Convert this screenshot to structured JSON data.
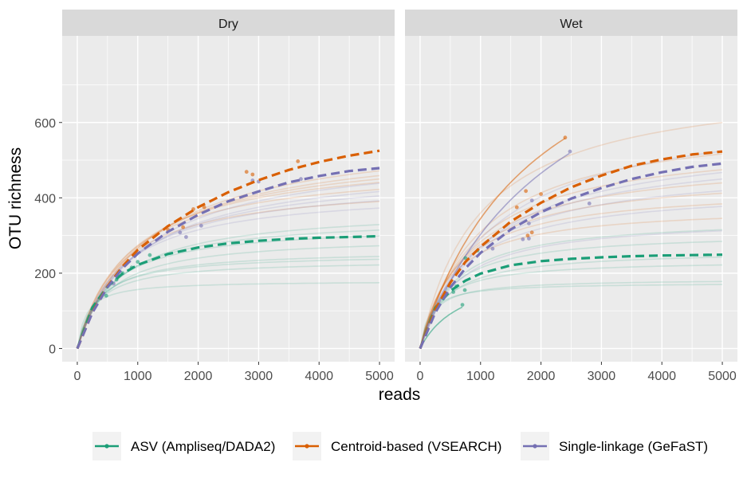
{
  "chart_data": {
    "type": "line",
    "xlabel": "reads",
    "ylabel": "OTU richness",
    "xlim": [
      -250,
      5250
    ],
    "ylim": [
      -35,
      830
    ],
    "x_ticks": [
      0,
      1000,
      2000,
      3000,
      4000,
      5000
    ],
    "y_ticks": [
      0,
      200,
      400,
      600
    ],
    "grid": true,
    "legend_position": "bottom",
    "colors": {
      "asv": "#1b9e77",
      "centroid": "#d95f02",
      "single": "#7570b3",
      "panel_bg": "#ebebeb",
      "strip_bg": "#d9d9d9"
    },
    "series": [
      {
        "key": "asv",
        "name": "ASV (Ampliseq/DADA2)"
      },
      {
        "key": "centroid",
        "name": "Centroid-based (VSEARCH)"
      },
      {
        "key": "single",
        "name": "Single-linkage (GeFaST)"
      }
    ],
    "panels": [
      {
        "title": "Dry",
        "mean_curves": [
          {
            "series": "asv",
            "x": [
              0,
              250,
              500,
              750,
              1000,
              1500,
              2000,
              2500,
              3000,
              3500,
              4000,
              4500,
              5000
            ],
            "y": [
              0,
              109,
              165,
              199,
              222,
              251,
              268,
              279,
              286,
              291,
              294,
              296,
              298
            ]
          },
          {
            "series": "centroid",
            "x": [
              0,
              250,
              500,
              750,
              1000,
              1500,
              2000,
              2500,
              3000,
              3500,
              4000,
              4500,
              5000
            ],
            "y": [
              0,
              97,
              165,
              218,
              262,
              325,
              375,
              415,
              447,
              474,
              495,
              512,
              525
            ]
          },
          {
            "series": "single",
            "x": [
              0,
              250,
              500,
              750,
              1000,
              1500,
              2000,
              2500,
              3000,
              3500,
              4000,
              4500,
              5000
            ],
            "y": [
              0,
              95,
              163,
              213,
              252,
              310,
              355,
              391,
              417,
              441,
              458,
              471,
              479
            ]
          }
        ],
        "sample_curves": [
          {
            "series": "asv",
            "asymptote": 180,
            "halfsat": 150,
            "end_x": 5000
          },
          {
            "series": "asv",
            "asymptote": 235,
            "halfsat": 300,
            "end_x": 5000
          },
          {
            "series": "asv",
            "asymptote": 252,
            "halfsat": 320,
            "end_x": 5000
          },
          {
            "series": "asv",
            "asymptote": 262,
            "halfsat": 360,
            "end_x": 5000
          },
          {
            "series": "asv",
            "asymptote": 300,
            "halfsat": 500,
            "end_x": 5000
          },
          {
            "series": "asv",
            "asymptote": 330,
            "halfsat": 520,
            "end_x": 5000
          },
          {
            "series": "asv",
            "asymptote": 352,
            "halfsat": 600,
            "end_x": 5000
          },
          {
            "series": "asv",
            "asymptote": 375,
            "halfsat": 700,
            "end_x": 5000
          },
          {
            "series": "centroid",
            "asymptote": 445,
            "halfsat": 700,
            "end_x": 5000
          },
          {
            "series": "centroid",
            "asymptote": 490,
            "halfsat": 800,
            "end_x": 5000
          },
          {
            "series": "centroid",
            "asymptote": 520,
            "halfsat": 900,
            "end_x": 5000
          },
          {
            "series": "centroid",
            "asymptote": 540,
            "halfsat": 1000,
            "end_x": 5000
          },
          {
            "series": "centroid",
            "asymptote": 560,
            "halfsat": 1100,
            "end_x": 5000
          },
          {
            "series": "centroid",
            "asymptote": 585,
            "halfsat": 1200,
            "end_x": 5000
          },
          {
            "series": "single",
            "asymptote": 425,
            "halfsat": 700,
            "end_x": 5000
          },
          {
            "series": "single",
            "asymptote": 455,
            "halfsat": 800,
            "end_x": 5000
          },
          {
            "series": "single",
            "asymptote": 478,
            "halfsat": 900,
            "end_x": 5000
          },
          {
            "series": "single",
            "asymptote": 500,
            "halfsat": 1000,
            "end_x": 5000
          },
          {
            "series": "single",
            "asymptote": 535,
            "halfsat": 1100,
            "end_x": 5000
          }
        ],
        "end_points": [
          {
            "series": "asv",
            "x": 480,
            "y": 140
          },
          {
            "series": "asv",
            "x": 650,
            "y": 183
          },
          {
            "series": "asv",
            "x": 750,
            "y": 200
          },
          {
            "series": "asv",
            "x": 900,
            "y": 215
          },
          {
            "series": "asv",
            "x": 1000,
            "y": 230
          },
          {
            "series": "asv",
            "x": 1200,
            "y": 248
          },
          {
            "series": "centroid",
            "x": 1500,
            "y": 315
          },
          {
            "series": "centroid",
            "x": 1750,
            "y": 322
          },
          {
            "series": "centroid",
            "x": 1920,
            "y": 370
          },
          {
            "series": "centroid",
            "x": 2100,
            "y": 375
          },
          {
            "series": "centroid",
            "x": 2800,
            "y": 469
          },
          {
            "series": "centroid",
            "x": 2900,
            "y": 462
          },
          {
            "series": "centroid",
            "x": 3650,
            "y": 497
          },
          {
            "series": "single",
            "x": 600,
            "y": 172
          },
          {
            "series": "single",
            "x": 1700,
            "y": 308
          },
          {
            "series": "single",
            "x": 1800,
            "y": 296
          },
          {
            "series": "single",
            "x": 2050,
            "y": 326
          },
          {
            "series": "single",
            "x": 2900,
            "y": 446
          },
          {
            "series": "single",
            "x": 3000,
            "y": 443
          },
          {
            "series": "single",
            "x": 3700,
            "y": 450
          }
        ]
      },
      {
        "title": "Wet",
        "mean_curves": [
          {
            "series": "asv",
            "x": [
              0,
              250,
              500,
              750,
              1000,
              1500,
              2000,
              2500,
              3000,
              3500,
              4000,
              4500,
              5000
            ],
            "y": [
              0,
              108,
              153,
              180,
              199,
              221,
              232,
              238,
              242,
              245,
              247,
              248,
              249
            ]
          },
          {
            "series": "centroid",
            "x": [
              0,
              250,
              500,
              750,
              1000,
              1500,
              2000,
              2500,
              3000,
              3500,
              4000,
              4500,
              5000
            ],
            "y": [
              0,
              103,
              175,
              230,
              270,
              337,
              387,
              428,
              459,
              485,
              502,
              515,
              523
            ]
          },
          {
            "series": "single",
            "x": [
              0,
              250,
              500,
              750,
              1000,
              1500,
              2000,
              2500,
              3000,
              3500,
              4000,
              4500,
              5000
            ],
            "y": [
              0,
              95,
              162,
              213,
              254,
              316,
              362,
              398,
              426,
              450,
              468,
              482,
              491
            ]
          }
        ],
        "sample_curves": [
          {
            "series": "asv",
            "asymptote": 175,
            "halfsat": 150,
            "end_x": 5000
          },
          {
            "series": "asv",
            "asymptote": 185,
            "halfsat": 200,
            "end_x": 5000
          },
          {
            "series": "asv",
            "asymptote": 235,
            "halfsat": 300,
            "end_x": 5000
          },
          {
            "series": "asv",
            "asymptote": 262,
            "halfsat": 400,
            "end_x": 5000
          },
          {
            "series": "asv",
            "asymptote": 310,
            "halfsat": 450,
            "end_x": 5000
          },
          {
            "series": "asv",
            "asymptote": 350,
            "halfsat": 550,
            "end_x": 5000
          },
          {
            "series": "asv",
            "asymptote": 220,
            "halfsat": 700,
            "end_x": 700
          },
          {
            "series": "centroid",
            "asymptote": 380,
            "halfsat": 500,
            "end_x": 5000
          },
          {
            "series": "centroid",
            "asymptote": 430,
            "halfsat": 600,
            "end_x": 5000
          },
          {
            "series": "centroid",
            "asymptote": 470,
            "halfsat": 700,
            "end_x": 5000
          },
          {
            "series": "centroid",
            "asymptote": 510,
            "halfsat": 800,
            "end_x": 5000
          },
          {
            "series": "centroid",
            "asymptote": 560,
            "halfsat": 900,
            "end_x": 5000
          },
          {
            "series": "centroid",
            "asymptote": 620,
            "halfsat": 1000,
            "end_x": 5000
          },
          {
            "series": "centroid",
            "asymptote": 720,
            "halfsat": 1000,
            "end_x": 5000
          },
          {
            "series": "centroid",
            "asymptote": 1000,
            "halfsat": 1900,
            "end_x": 2400
          },
          {
            "series": "single",
            "asymptote": 350,
            "halfsat": 600,
            "end_x": 5000
          },
          {
            "series": "single",
            "asymptote": 430,
            "halfsat": 700,
            "end_x": 5000
          },
          {
            "series": "single",
            "asymptote": 490,
            "halfsat": 850,
            "end_x": 5000
          },
          {
            "series": "single",
            "asymptote": 540,
            "halfsat": 1000,
            "end_x": 5000
          },
          {
            "series": "single",
            "asymptote": 570,
            "halfsat": 1100,
            "end_x": 5000
          },
          {
            "series": "single",
            "asymptote": 655,
            "halfsat": 1250,
            "end_x": 5000
          },
          {
            "series": "single",
            "asymptote": 1000,
            "halfsat": 2300,
            "end_x": 2470
          }
        ],
        "end_points": [
          {
            "series": "asv",
            "x": 550,
            "y": 150
          },
          {
            "series": "asv",
            "x": 600,
            "y": 165
          },
          {
            "series": "asv",
            "x": 700,
            "y": 116
          },
          {
            "series": "asv",
            "x": 740,
            "y": 155
          },
          {
            "series": "asv",
            "x": 750,
            "y": 240
          },
          {
            "series": "asv",
            "x": 950,
            "y": 260
          },
          {
            "series": "centroid",
            "x": 1600,
            "y": 375
          },
          {
            "series": "centroid",
            "x": 1750,
            "y": 418
          },
          {
            "series": "centroid",
            "x": 1780,
            "y": 300
          },
          {
            "series": "centroid",
            "x": 1850,
            "y": 308
          },
          {
            "series": "centroid",
            "x": 2000,
            "y": 410
          },
          {
            "series": "centroid",
            "x": 2400,
            "y": 560
          },
          {
            "series": "single",
            "x": 1200,
            "y": 265
          },
          {
            "series": "single",
            "x": 1700,
            "y": 290
          },
          {
            "series": "single",
            "x": 1800,
            "y": 292
          },
          {
            "series": "single",
            "x": 1800,
            "y": 332
          },
          {
            "series": "single",
            "x": 1850,
            "y": 393
          },
          {
            "series": "single",
            "x": 2480,
            "y": 523
          },
          {
            "series": "single",
            "x": 2800,
            "y": 385
          }
        ]
      }
    ]
  }
}
